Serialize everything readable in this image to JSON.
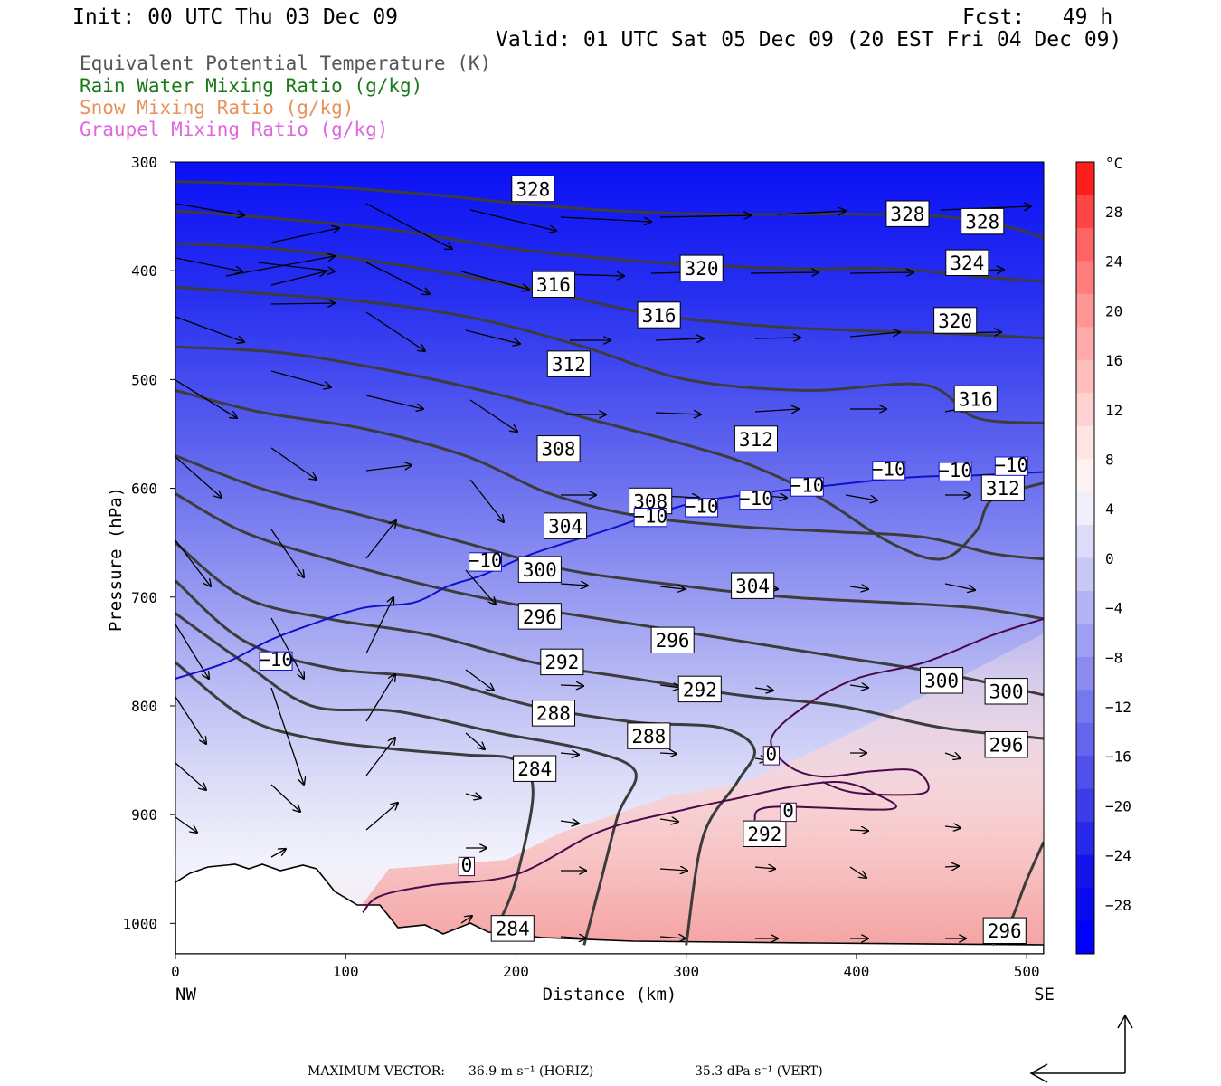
{
  "header": {
    "init": "Init: 00 UTC Thu 03 Dec 09",
    "fcst": "Fcst:   49 h",
    "valid": "Valid: 01 UTC Sat 05 Dec 09 (20 EST Fri 04 Dec 09)"
  },
  "fields": [
    {
      "label": "Equivalent Potential Temperature (K)",
      "color": "#555555"
    },
    {
      "label": "Rain Water Mixing Ratio (g/kg)",
      "color": "#1a7a1a"
    },
    {
      "label": "Snow Mixing Ratio (g/kg)",
      "color": "#e8915a"
    },
    {
      "label": "Graupel Mixing Ratio (g/kg)",
      "color": "#e066e0"
    }
  ],
  "colorbar": {
    "unit": "°C",
    "ticks": [
      "28",
      "24",
      "20",
      "16",
      "12",
      "8",
      "4",
      "0",
      "−4",
      "−8",
      "−12",
      "−16",
      "−20",
      "−24",
      "−28"
    ]
  },
  "footer": {
    "max_label": "MAXIMUM VECTOR:",
    "horiz": "36.9 m s⁻¹ (HORIZ)",
    "vert": "35.3 dPa s⁻¹ (VERT)"
  },
  "chart_data": {
    "type": "cross-section",
    "xlabel": "Distance (km)",
    "ylabel": "Pressure (hPa)",
    "xlim": [
      0,
      510
    ],
    "ylim": [
      1028,
      300
    ],
    "x_ticks": [
      0,
      100,
      200,
      300,
      400,
      500
    ],
    "y_ticks": [
      300,
      400,
      500,
      600,
      700,
      800,
      900,
      1000
    ],
    "left_endpoint": "NW",
    "right_endpoint": "SE",
    "fill": "temperature (°C)",
    "theta_e_contours": [
      {
        "level": 328,
        "points": [
          [
            0,
            318
          ],
          [
            80,
            322
          ],
          [
            150,
            330
          ],
          [
            200,
            338
          ],
          [
            260,
            345
          ],
          [
            320,
            348
          ],
          [
            400,
            348
          ],
          [
            450,
            350
          ],
          [
            490,
            360
          ],
          [
            510,
            370
          ]
        ]
      },
      {
        "level": 324,
        "points": [
          [
            0,
            345
          ],
          [
            60,
            352
          ],
          [
            130,
            363
          ],
          [
            200,
            380
          ],
          [
            280,
            392
          ],
          [
            360,
            398
          ],
          [
            420,
            398
          ],
          [
            470,
            405
          ],
          [
            510,
            410
          ]
        ]
      },
      {
        "level": 320,
        "points": [
          [
            0,
            375
          ],
          [
            60,
            380
          ],
          [
            120,
            392
          ],
          [
            170,
            405
          ],
          [
            220,
            420
          ],
          [
            280,
            440
          ],
          [
            340,
            450
          ],
          [
            400,
            455
          ],
          [
            460,
            458
          ],
          [
            510,
            462
          ]
        ]
      },
      {
        "level": 316,
        "points": [
          [
            0,
            415
          ],
          [
            60,
            422
          ],
          [
            120,
            430
          ],
          [
            180,
            445
          ],
          [
            240,
            470
          ],
          [
            300,
            500
          ],
          [
            370,
            510
          ],
          [
            440,
            505
          ],
          [
            470,
            535
          ],
          [
            510,
            540
          ]
        ]
      },
      {
        "level": 312,
        "points": [
          [
            0,
            470
          ],
          [
            60,
            475
          ],
          [
            120,
            490
          ],
          [
            180,
            510
          ],
          [
            240,
            535
          ],
          [
            300,
            560
          ],
          [
            340,
            580
          ],
          [
            380,
            610
          ],
          [
            420,
            650
          ],
          [
            450,
            665
          ],
          [
            470,
            640
          ],
          [
            480,
            610
          ],
          [
            510,
            595
          ]
        ]
      },
      {
        "level": 308,
        "points": [
          [
            0,
            510
          ],
          [
            50,
            530
          ],
          [
            110,
            545
          ],
          [
            170,
            570
          ],
          [
            220,
            605
          ],
          [
            270,
            625
          ],
          [
            330,
            635
          ],
          [
            390,
            640
          ],
          [
            440,
            645
          ],
          [
            480,
            660
          ],
          [
            510,
            665
          ]
        ]
      },
      {
        "level": 304,
        "points": [
          [
            0,
            570
          ],
          [
            50,
            600
          ],
          [
            110,
            625
          ],
          [
            170,
            650
          ],
          [
            230,
            675
          ],
          [
            300,
            690
          ],
          [
            360,
            700
          ],
          [
            420,
            705
          ],
          [
            470,
            710
          ],
          [
            510,
            720
          ]
        ]
      },
      {
        "level": 300,
        "points": [
          [
            0,
            605
          ],
          [
            40,
            640
          ],
          [
            90,
            665
          ],
          [
            150,
            690
          ],
          [
            210,
            710
          ],
          [
            270,
            725
          ],
          [
            330,
            740
          ],
          [
            390,
            755
          ],
          [
            450,
            770
          ],
          [
            510,
            790
          ]
        ]
      },
      {
        "level": 296,
        "points": [
          [
            0,
            650
          ],
          [
            40,
            700
          ],
          [
            90,
            720
          ],
          [
            150,
            735
          ],
          [
            210,
            760
          ],
          [
            270,
            775
          ],
          [
            330,
            790
          ],
          [
            390,
            800
          ],
          [
            450,
            820
          ],
          [
            510,
            830
          ]
        ]
      },
      {
        "level": 292,
        "points": [
          [
            0,
            685
          ],
          [
            40,
            740
          ],
          [
            90,
            765
          ],
          [
            150,
            775
          ],
          [
            210,
            800
          ],
          [
            270,
            815
          ],
          [
            320,
            820
          ],
          [
            340,
            840
          ],
          [
            330,
            870
          ],
          [
            310,
            920
          ],
          [
            300,
            1020
          ]
        ]
      },
      {
        "level": 288,
        "points": [
          [
            0,
            715
          ],
          [
            40,
            760
          ],
          [
            80,
            800
          ],
          [
            130,
            805
          ],
          [
            190,
            825
          ],
          [
            240,
            840
          ],
          [
            270,
            860
          ],
          [
            260,
            900
          ],
          [
            250,
            960
          ],
          [
            240,
            1020
          ]
        ]
      },
      {
        "level": 284,
        "points": [
          [
            0,
            760
          ],
          [
            40,
            810
          ],
          [
            80,
            830
          ],
          [
            130,
            840
          ],
          [
            170,
            845
          ],
          [
            200,
            850
          ],
          [
            210,
            880
          ],
          [
            200,
            960
          ],
          [
            190,
            1000
          ]
        ]
      },
      {
        "level": 296,
        "points": [
          [
            510,
            925
          ],
          [
            500,
            960
          ],
          [
            490,
            1000
          ],
          [
            480,
            1020
          ]
        ]
      }
    ],
    "temperature_contours": [
      {
        "level": -10,
        "color": "#1010cc",
        "points": [
          [
            0,
            775
          ],
          [
            30,
            760
          ],
          [
            55,
            740
          ],
          [
            80,
            725
          ],
          [
            110,
            710
          ],
          [
            140,
            705
          ],
          [
            160,
            690
          ],
          [
            180,
            680
          ],
          [
            210,
            660
          ],
          [
            250,
            640
          ],
          [
            300,
            615
          ],
          [
            340,
            605
          ],
          [
            380,
            598
          ],
          [
            430,
            590
          ],
          [
            470,
            588
          ],
          [
            510,
            585
          ]
        ]
      },
      {
        "level": 0,
        "color": "#4a0a4a",
        "points": [
          [
            110,
            990
          ],
          [
            120,
            975
          ],
          [
            150,
            965
          ],
          [
            200,
            955
          ],
          [
            250,
            915
          ],
          [
            300,
            895
          ],
          [
            330,
            885
          ],
          [
            360,
            875
          ],
          [
            390,
            870
          ],
          [
            410,
            880
          ],
          [
            420,
            895
          ],
          [
            350,
            893
          ],
          [
            340,
            905
          ]
        ]
      },
      {
        "level": 0,
        "color": "#4a0a4a",
        "points": [
          [
            510,
            720
          ],
          [
            480,
            735
          ],
          [
            440,
            760
          ],
          [
            400,
            775
          ],
          [
            370,
            800
          ],
          [
            350,
            830
          ],
          [
            360,
            855
          ],
          [
            380,
            865
          ],
          [
            410,
            860
          ],
          [
            435,
            860
          ],
          [
            440,
            880
          ],
          [
            400,
            880
          ],
          [
            380,
            870
          ]
        ]
      }
    ],
    "contour_labels": [
      {
        "text": "328",
        "x": 210,
        "p": 325
      },
      {
        "text": "328",
        "x": 430,
        "p": 348
      },
      {
        "text": "328",
        "x": 474,
        "p": 355
      },
      {
        "text": "324",
        "x": 465,
        "p": 393
      },
      {
        "text": "320",
        "x": 309,
        "p": 398
      },
      {
        "text": "320",
        "x": 458,
        "p": 446
      },
      {
        "text": "316",
        "x": 222,
        "p": 413
      },
      {
        "text": "316",
        "x": 284,
        "p": 441
      },
      {
        "text": "316",
        "x": 470,
        "p": 518
      },
      {
        "text": "312",
        "x": 231,
        "p": 486
      },
      {
        "text": "312",
        "x": 341,
        "p": 555
      },
      {
        "text": "312",
        "x": 486,
        "p": 600
      },
      {
        "text": "308",
        "x": 225,
        "p": 564
      },
      {
        "text": "308",
        "x": 279,
        "p": 612
      },
      {
        "text": "304",
        "x": 229,
        "p": 635
      },
      {
        "text": "304",
        "x": 339,
        "p": 690
      },
      {
        "text": "300",
        "x": 214,
        "p": 675
      },
      {
        "text": "300",
        "x": 450,
        "p": 777
      },
      {
        "text": "300",
        "x": 488,
        "p": 787
      },
      {
        "text": "296",
        "x": 214,
        "p": 718
      },
      {
        "text": "296",
        "x": 292,
        "p": 740
      },
      {
        "text": "296",
        "x": 488,
        "p": 836
      },
      {
        "text": "296",
        "x": 487,
        "p": 1007
      },
      {
        "text": "292",
        "x": 227,
        "p": 760
      },
      {
        "text": "292",
        "x": 308,
        "p": 785
      },
      {
        "text": "292",
        "x": 346,
        "p": 918
      },
      {
        "text": "288",
        "x": 222,
        "p": 807
      },
      {
        "text": "288",
        "x": 278,
        "p": 828
      },
      {
        "text": "284",
        "x": 211,
        "p": 858
      },
      {
        "text": "284",
        "x": 198,
        "p": 1005
      },
      {
        "text": "−10",
        "x": 59,
        "p": 759
      },
      {
        "text": "−10",
        "x": 182,
        "p": 668
      },
      {
        "text": "−10",
        "x": 279,
        "p": 627
      },
      {
        "text": "−10",
        "x": 309,
        "p": 618
      },
      {
        "text": "−10",
        "x": 341,
        "p": 611
      },
      {
        "text": "−10",
        "x": 371,
        "p": 599
      },
      {
        "text": "−10",
        "x": 419,
        "p": 584
      },
      {
        "text": "−10",
        "x": 458,
        "p": 585
      },
      {
        "text": "−10",
        "x": 491,
        "p": 580
      },
      {
        "text": "0",
        "x": 171,
        "p": 948
      },
      {
        "text": "0",
        "x": 350,
        "p": 846
      },
      {
        "text": "0",
        "x": 360,
        "p": 898
      }
    ]
  }
}
